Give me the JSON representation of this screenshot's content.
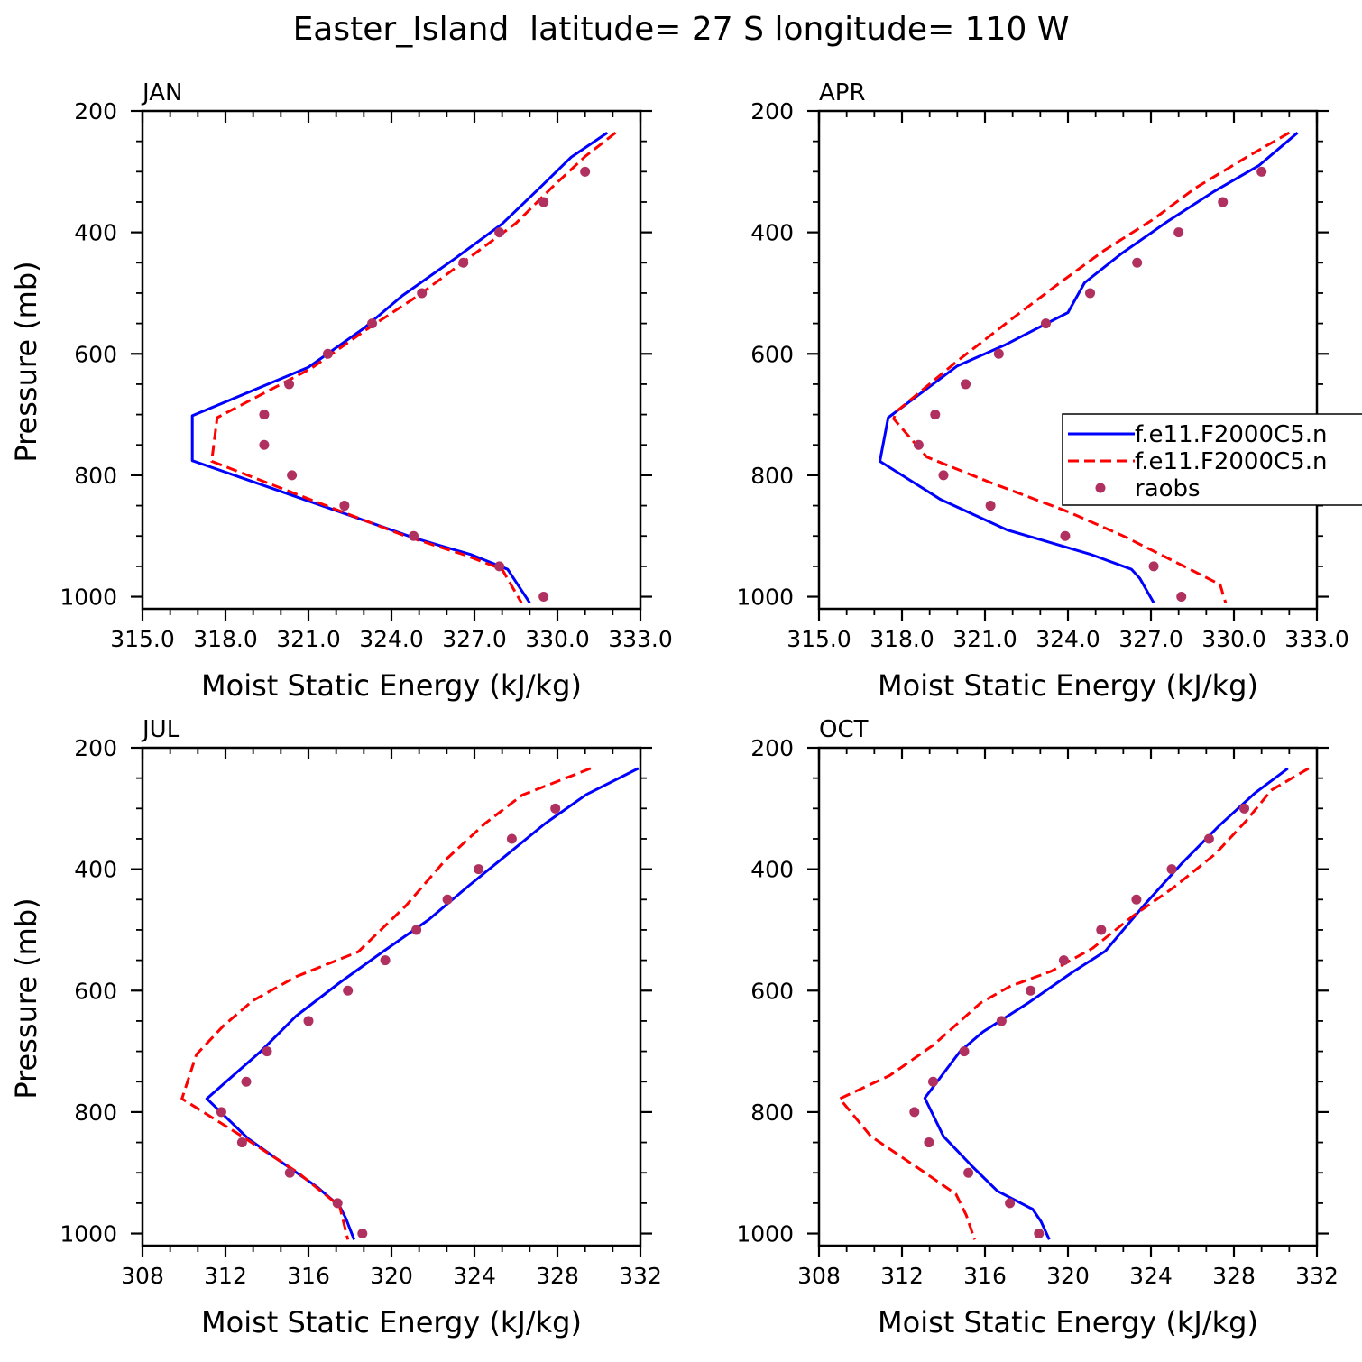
{
  "figure": {
    "title": "Easter_Island  latitude= 27 S longitude= 110 W"
  },
  "legend": {
    "entries": [
      {
        "label": "f.e11.F2000C5.n",
        "style": "solid",
        "color": "#0000ff"
      },
      {
        "label": "f.e11.F2000C5.n",
        "style": "dashed",
        "color": "#ff0000"
      },
      {
        "label": "raobs",
        "style": "dot",
        "color": "#b03060"
      }
    ]
  },
  "chart_data": [
    {
      "type": "line",
      "panel_label": "JAN",
      "xlabel": "Moist Static Energy (kJ/kg)",
      "ylabel": "Pressure (mb)",
      "xlim": [
        315,
        333
      ],
      "ylim": [
        200,
        1020
      ],
      "y_inverted": true,
      "xticks": [
        "315.0",
        "318.0",
        "321.0",
        "324.0",
        "327.0",
        "330.0",
        "333.0"
      ],
      "yticks": [
        "200",
        "400",
        "600",
        "800",
        "1000"
      ],
      "series": [
        {
          "style": "solid",
          "color": "#0000ff",
          "points": [
            [
              331.8,
              236
            ],
            [
              330.5,
              276
            ],
            [
              329.4,
              325
            ],
            [
              328.0,
              386
            ],
            [
              326.3,
              443
            ],
            [
              324.4,
              504
            ],
            [
              323.0,
              558
            ],
            [
              321.0,
              622
            ],
            [
              316.8,
              702
            ],
            [
              316.8,
              776
            ],
            [
              322.3,
              863
            ],
            [
              324.8,
              903
            ],
            [
              326.9,
              931
            ],
            [
              328.2,
              955
            ],
            [
              329.0,
              1010
            ]
          ]
        },
        {
          "style": "dashed",
          "color": "#ff0000",
          "points": [
            [
              332.1,
              236
            ],
            [
              331.0,
              275
            ],
            [
              329.8,
              326
            ],
            [
              328.5,
              385
            ],
            [
              326.8,
              442
            ],
            [
              325.0,
              503
            ],
            [
              323.1,
              560
            ],
            [
              321.1,
              624
            ],
            [
              317.7,
              705
            ],
            [
              317.5,
              777
            ],
            [
              322.2,
              860
            ],
            [
              324.5,
              900
            ],
            [
              326.7,
              932
            ],
            [
              328.0,
              955
            ],
            [
              328.7,
              1010
            ]
          ]
        },
        {
          "style": "dot",
          "color": "#b03060",
          "points": [
            [
              331.0,
              300
            ],
            [
              329.5,
              350
            ],
            [
              327.9,
              400
            ],
            [
              326.6,
              450
            ],
            [
              325.1,
              500
            ],
            [
              323.3,
              550
            ],
            [
              321.7,
              600
            ],
            [
              320.3,
              650
            ],
            [
              319.4,
              700
            ],
            [
              319.4,
              750
            ],
            [
              320.4,
              800
            ],
            [
              322.3,
              850
            ],
            [
              324.8,
              900
            ],
            [
              327.9,
              950
            ],
            [
              329.5,
              1000
            ]
          ]
        }
      ]
    },
    {
      "type": "line",
      "panel_label": "APR",
      "xlabel": "Moist Static Energy (kJ/kg)",
      "ylabel": "",
      "xlim": [
        315,
        333
      ],
      "ylim": [
        200,
        1020
      ],
      "y_inverted": true,
      "xticks": [
        "315.0",
        "318.0",
        "321.0",
        "324.0",
        "327.0",
        "330.0",
        "333.0"
      ],
      "yticks": [
        "200",
        "400",
        "600",
        "800",
        "1000"
      ],
      "series": [
        {
          "style": "solid",
          "color": "#0000ff",
          "points": [
            [
              332.3,
              236
            ],
            [
              330.9,
              290
            ],
            [
              329.3,
              332
            ],
            [
              327.6,
              382
            ],
            [
              325.9,
              436
            ],
            [
              324.6,
              483
            ],
            [
              324.0,
              532
            ],
            [
              321.7,
              586
            ],
            [
              320.0,
              620
            ],
            [
              317.5,
              705
            ],
            [
              317.2,
              777
            ],
            [
              319.4,
              840
            ],
            [
              321.8,
              890
            ],
            [
              324.8,
              930
            ],
            [
              326.3,
              955
            ],
            [
              326.6,
              970
            ],
            [
              327.1,
              1010
            ]
          ]
        },
        {
          "style": "dashed",
          "color": "#ff0000",
          "points": [
            [
              332.0,
              236
            ],
            [
              330.5,
              275
            ],
            [
              328.6,
              327
            ],
            [
              327.1,
              378
            ],
            [
              325.3,
              430
            ],
            [
              323.5,
              490
            ],
            [
              321.9,
              545
            ],
            [
              320.0,
              612
            ],
            [
              317.8,
              695
            ],
            [
              317.7,
              707
            ],
            [
              318.9,
              770
            ],
            [
              321.2,
              812
            ],
            [
              324.0,
              860
            ],
            [
              326.0,
              900
            ],
            [
              328.2,
              950
            ],
            [
              329.5,
              980
            ],
            [
              329.7,
              1010
            ]
          ]
        },
        {
          "style": "dot",
          "color": "#b03060",
          "points": [
            [
              331.0,
              300
            ],
            [
              329.6,
              350
            ],
            [
              328.0,
              400
            ],
            [
              326.5,
              450
            ],
            [
              324.8,
              500
            ],
            [
              323.2,
              550
            ],
            [
              321.5,
              600
            ],
            [
              320.3,
              650
            ],
            [
              319.2,
              700
            ],
            [
              318.6,
              750
            ],
            [
              319.5,
              800
            ],
            [
              321.2,
              850
            ],
            [
              323.9,
              900
            ],
            [
              327.1,
              950
            ],
            [
              328.1,
              1000
            ]
          ]
        }
      ]
    },
    {
      "type": "line",
      "panel_label": "JUL",
      "xlabel": "Moist Static Energy (kJ/kg)",
      "ylabel": "Pressure (mb)",
      "xlim": [
        308,
        332
      ],
      "ylim": [
        200,
        1020
      ],
      "y_inverted": true,
      "xticks": [
        "308",
        "312",
        "316",
        "320",
        "324",
        "328",
        "332"
      ],
      "yticks": [
        "200",
        "400",
        "600",
        "800",
        "1000"
      ],
      "series": [
        {
          "style": "solid",
          "color": "#0000ff",
          "points": [
            [
              331.9,
              234
            ],
            [
              329.4,
              277
            ],
            [
              327.4,
              325
            ],
            [
              325.5,
              378
            ],
            [
              323.7,
              428
            ],
            [
              321.8,
              483
            ],
            [
              319.5,
              538
            ],
            [
              317.5,
              587
            ],
            [
              315.4,
              642
            ],
            [
              313.7,
              700
            ],
            [
              311.1,
              778
            ],
            [
              313.1,
              844
            ],
            [
              314.3,
              873
            ],
            [
              316.4,
              923
            ],
            [
              317.5,
              955
            ],
            [
              317.8,
              975
            ],
            [
              318.2,
              1010
            ]
          ]
        },
        {
          "style": "dashed",
          "color": "#ff0000",
          "points": [
            [
              329.6,
              234
            ],
            [
              326.3,
              278
            ],
            [
              324.5,
              325
            ],
            [
              322.6,
              385
            ],
            [
              320.7,
              460
            ],
            [
              318.4,
              536
            ],
            [
              315.4,
              577
            ],
            [
              313.3,
              617
            ],
            [
              311.9,
              658
            ],
            [
              310.6,
              705
            ],
            [
              309.9,
              778
            ],
            [
              312.8,
              840
            ],
            [
              315.5,
              900
            ],
            [
              317.5,
              955
            ],
            [
              317.9,
              1010
            ]
          ]
        },
        {
          "style": "dot",
          "color": "#b03060",
          "points": [
            [
              327.9,
              300
            ],
            [
              325.8,
              350
            ],
            [
              324.2,
              400
            ],
            [
              322.7,
              450
            ],
            [
              321.2,
              500
            ],
            [
              319.7,
              550
            ],
            [
              317.9,
              600
            ],
            [
              316.0,
              650
            ],
            [
              314.0,
              700
            ],
            [
              313.0,
              750
            ],
            [
              311.8,
              800
            ],
            [
              312.8,
              850
            ],
            [
              315.1,
              900
            ],
            [
              317.4,
              950
            ],
            [
              318.6,
              1000
            ]
          ]
        }
      ]
    },
    {
      "type": "line",
      "panel_label": "OCT",
      "xlabel": "Moist Static Energy (kJ/kg)",
      "ylabel": "",
      "xlim": [
        308,
        332
      ],
      "ylim": [
        200,
        1020
      ],
      "y_inverted": true,
      "xticks": [
        "308",
        "312",
        "316",
        "320",
        "324",
        "328",
        "332"
      ],
      "yticks": [
        "200",
        "400",
        "600",
        "800",
        "1000"
      ],
      "series": [
        {
          "style": "solid",
          "color": "#0000ff",
          "points": [
            [
              330.6,
              234
            ],
            [
              329.0,
              275
            ],
            [
              327.3,
              328
            ],
            [
              325.5,
              390
            ],
            [
              323.7,
              458
            ],
            [
              321.8,
              535
            ],
            [
              320.2,
              570
            ],
            [
              318.1,
              620
            ],
            [
              315.9,
              668
            ],
            [
              314.8,
              700
            ],
            [
              313.1,
              777
            ],
            [
              314.0,
              840
            ],
            [
              315.4,
              890
            ],
            [
              316.6,
              930
            ],
            [
              318.3,
              960
            ],
            [
              318.7,
              980
            ],
            [
              319.1,
              1010
            ]
          ]
        },
        {
          "style": "dashed",
          "color": "#ff0000",
          "points": [
            [
              331.6,
              234
            ],
            [
              329.8,
              270
            ],
            [
              328.6,
              320
            ],
            [
              327.1,
              375
            ],
            [
              325.1,
              430
            ],
            [
              323.1,
              478
            ],
            [
              321.2,
              530
            ],
            [
              319.2,
              568
            ],
            [
              317.2,
              593
            ],
            [
              315.8,
              620
            ],
            [
              313.5,
              690
            ],
            [
              311.4,
              740
            ],
            [
              309.0,
              778
            ],
            [
              310.5,
              840
            ],
            [
              312.9,
              895
            ],
            [
              314.6,
              935
            ],
            [
              315.1,
              970
            ],
            [
              315.5,
              1010
            ]
          ]
        },
        {
          "style": "dot",
          "color": "#b03060",
          "points": [
            [
              328.5,
              300
            ],
            [
              326.8,
              350
            ],
            [
              325.0,
              400
            ],
            [
              323.3,
              450
            ],
            [
              321.6,
              500
            ],
            [
              319.8,
              550
            ],
            [
              318.2,
              600
            ],
            [
              316.8,
              650
            ],
            [
              315.0,
              700
            ],
            [
              313.5,
              750
            ],
            [
              312.6,
              800
            ],
            [
              313.3,
              850
            ],
            [
              315.2,
              900
            ],
            [
              317.2,
              950
            ],
            [
              318.6,
              1000
            ]
          ]
        }
      ]
    }
  ]
}
